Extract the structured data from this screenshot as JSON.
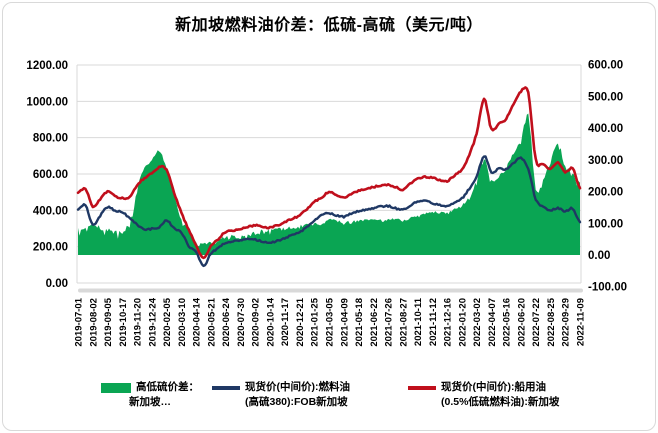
{
  "title": "新加坡燃料油价差：低硫-高硫（美元/吨）",
  "colors": {
    "green": "#0aa553",
    "blue": "#1f3864",
    "red": "#c00f1c",
    "grid": "#d9d9d9",
    "band": "#d9d9d9",
    "text": "#000000"
  },
  "legend": [
    {
      "swatch": "area",
      "color": "#0aa553",
      "line1": "高低硫价差：",
      "line2": "新加坡…"
    },
    {
      "swatch": "line",
      "color": "#1f3864",
      "line1": "现货价(中间价):燃料油",
      "line2": "(高硫380):FOB新加坡"
    },
    {
      "swatch": "line",
      "color": "#c00f1c",
      "line1": "现货价(中间价):船用油",
      "line2": "(0.5%低硫燃料油):新加坡"
    }
  ],
  "chart_data": {
    "type": "area+line combo, dual axis",
    "title": "新加坡燃料油价差：低硫-高硫（美元/吨）",
    "left_axis": {
      "min": 0,
      "max": 1200,
      "step": 200,
      "tick_labels": [
        "1200.00",
        "1000.00",
        "800.00",
        "600.00",
        "400.00",
        "200.00",
        "0.00"
      ]
    },
    "right_axis": {
      "min": -100,
      "max": 600,
      "step": 100,
      "tick_labels": [
        "600.00",
        "500.00",
        "400.00",
        "300.00",
        "200.00",
        "100.00",
        "0.00",
        "-100.00"
      ]
    },
    "x_tick_labels": [
      "2019-07-01",
      "2019-08-02",
      "2019-09-05",
      "2019-10-17",
      "2019-11-20",
      "2019-12-24",
      "2020-02-05",
      "2020-03-10",
      "2020-04-14",
      "2020-05-21",
      "2020-06-24",
      "2020-07-30",
      "2020-09-02",
      "2020-10-14",
      "2020-11-17",
      "2020-12-21",
      "2021-01-25",
      "2021-03-05",
      "2021-04-09",
      "2021-05-18",
      "2021-06-22",
      "2021-07-26",
      "2021-08-27",
      "2021-10-11",
      "2021-11-12",
      "2021-12-16",
      "2022-01-20",
      "2022-03-02",
      "2022-04-07",
      "2022-05-16",
      "2022-06-20",
      "2022-07-22",
      "2022-08-25",
      "2022-09-29",
      "2022-11-09"
    ],
    "points_per_tick_interval": 2,
    "series": [
      {
        "name": "高低硫价差：新加坡…",
        "type": "area",
        "axis": "right",
        "color": "#0aa553",
        "values": [
          88,
          90,
          96,
          90,
          83,
          80,
          78,
          112,
          212,
          278,
          300,
          328,
          275,
          195,
          110,
          85,
          42,
          38,
          42,
          52,
          58,
          62,
          60,
          66,
          76,
          80,
          82,
          84,
          86,
          88,
          92,
          98,
          101,
          99,
          113,
          110,
          105,
          107,
          110,
          112,
          114,
          114,
          115,
          113,
          111,
          118,
          126,
          132,
          137,
          136,
          135,
          146,
          158,
          185,
          238,
          312,
          235,
          248,
          280,
          325,
          368,
          448,
          215,
          240,
          300,
          352,
          290,
          258,
          230
        ]
      },
      {
        "name": "现货价(中间价):燃料油(高硫380):FOB新加坡",
        "type": "line",
        "axis": "left",
        "color": "#1f3864",
        "values": [
          405,
          428,
          322,
          370,
          418,
          398,
          390,
          355,
          322,
          295,
          298,
          308,
          345,
          300,
          275,
          205,
          168,
          96,
          162,
          192,
          222,
          230,
          236,
          240,
          238,
          228,
          222,
          232,
          248,
          262,
          278,
          308,
          342,
          372,
          385,
          372,
          365,
          382,
          396,
          405,
          412,
          420,
          424,
          412,
          402,
          425,
          448,
          452,
          440,
          430,
          425,
          445,
          465,
          520,
          585,
          700,
          612,
          628,
          626,
          660,
          688,
          625,
          462,
          420,
          402,
          412,
          395,
          408,
          335
        ]
      },
      {
        "name": "现货价(中间价):船用油(0.5%低硫燃料油):新加坡",
        "type": "line",
        "axis": "left",
        "color": "#c00f1c",
        "values": [
          495,
          520,
          420,
          462,
          502,
          478,
          468,
          470,
          538,
          578,
          602,
          636,
          622,
          498,
          388,
          292,
          208,
          138,
          202,
          242,
          282,
          290,
          296,
          308,
          318,
          310,
          306,
          318,
          336,
          352,
          372,
          408,
          445,
          472,
          500,
          485,
          472,
          490,
          508,
          518,
          528,
          536,
          540,
          528,
          515,
          545,
          574,
          585,
          578,
          568,
          562,
          592,
          625,
          705,
          825,
          1012,
          848,
          876,
          905,
          985,
          1055,
          1045,
          682,
          655,
          628,
          662,
          612,
          630,
          525
        ]
      }
    ],
    "grid": "horizontal only",
    "legend_position": "bottom"
  }
}
